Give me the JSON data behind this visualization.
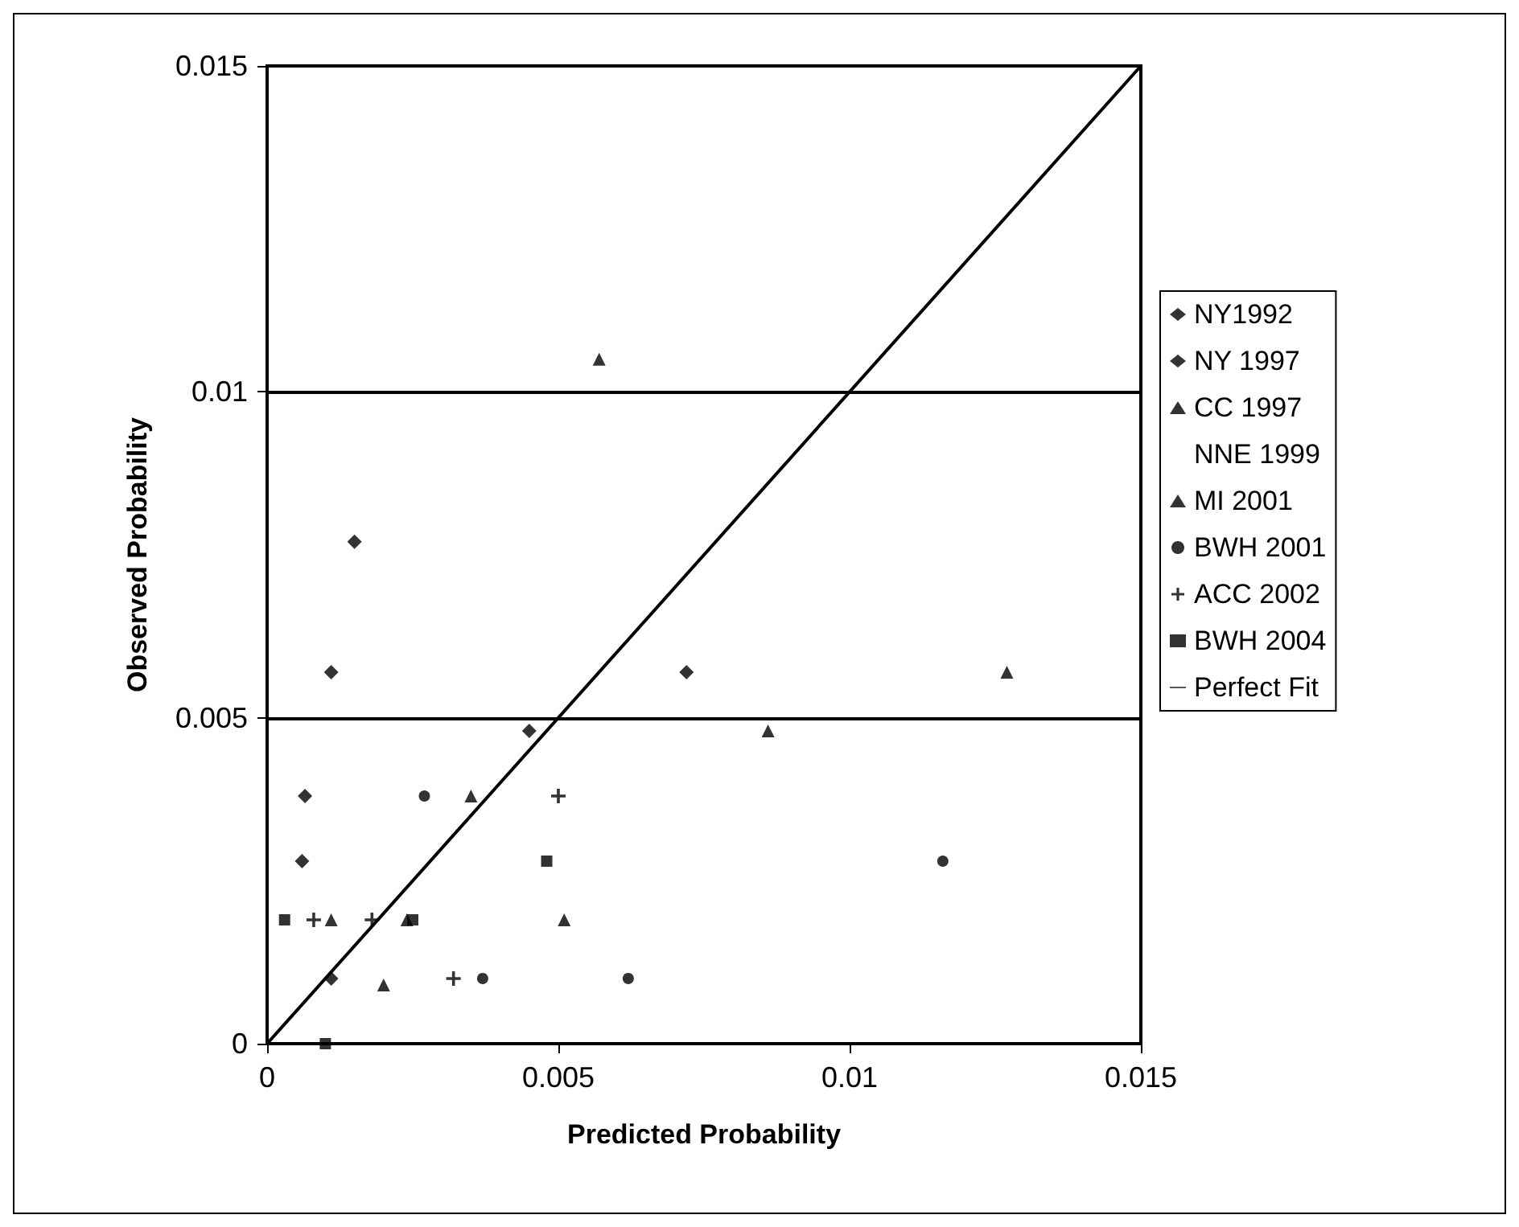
{
  "chart_data": {
    "type": "scatter",
    "xlabel": "Predicted Probability",
    "ylabel": "Observed Probability",
    "xlim": [
      0,
      0.015
    ],
    "ylim": [
      0,
      0.015
    ],
    "xticks": [
      0,
      0.005,
      0.01,
      0.015
    ],
    "yticks": [
      0,
      0.005,
      0.01,
      0.015
    ],
    "grid": "y",
    "legend": "right",
    "series": [
      {
        "name": "NY1992",
        "color": "#000000",
        "marker": "diamond",
        "x": [
          0.00065,
          0.0006,
          0.0011,
          0.0045
        ],
        "values": [
          0.0038,
          0.0028,
          0.001,
          0.0048
        ]
      },
      {
        "name": "NY 1997",
        "color": "#000000",
        "marker": "diamond",
        "x": [
          0.0015,
          0.0011,
          0.0072
        ],
        "values": [
          0.0077,
          0.0057,
          0.0057
        ]
      },
      {
        "name": "CC 1997",
        "color": "#000000",
        "marker": "triangle",
        "x": [
          0.0086,
          0.0051,
          0.0127
        ],
        "values": [
          0.0048,
          0.0019,
          0.0057
        ]
      },
      {
        "name": "NNE 1999",
        "color": "#000000",
        "marker": "none"
      },
      {
        "name": "MI 2001",
        "color": "#000000",
        "marker": "triangle",
        "x": [
          0.0057,
          0.0035,
          0.0011,
          0.002,
          0.0024
        ],
        "values": [
          0.0105,
          0.0038,
          0.0019,
          0.0009,
          0.0019
        ]
      },
      {
        "name": "BWH 2001",
        "color": "#000000",
        "marker": "circle",
        "x": [
          0.0027,
          0.0037,
          0.0062,
          0.0116
        ],
        "values": [
          0.0038,
          0.001,
          0.001,
          0.0028
        ]
      },
      {
        "name": "ACC 2002",
        "color": "#000000",
        "marker": "cross",
        "x": [
          0.005,
          0.0008,
          0.0018,
          0.0032
        ],
        "values": [
          0.0038,
          0.0019,
          0.0019,
          0.001
        ]
      },
      {
        "name": "BWH 2004",
        "color": "#000000",
        "marker": "square",
        "x": [
          0.0003,
          0.0025,
          0.0048,
          0.001
        ],
        "values": [
          0.0019,
          0.0019,
          0.0028,
          0
        ]
      },
      {
        "name": "Perfect Fit",
        "type": "line",
        "color": "#000000",
        "marker": "none",
        "line_style": "solid",
        "x": [
          0,
          0.015
        ],
        "values": [
          0,
          0.015
        ]
      }
    ]
  }
}
